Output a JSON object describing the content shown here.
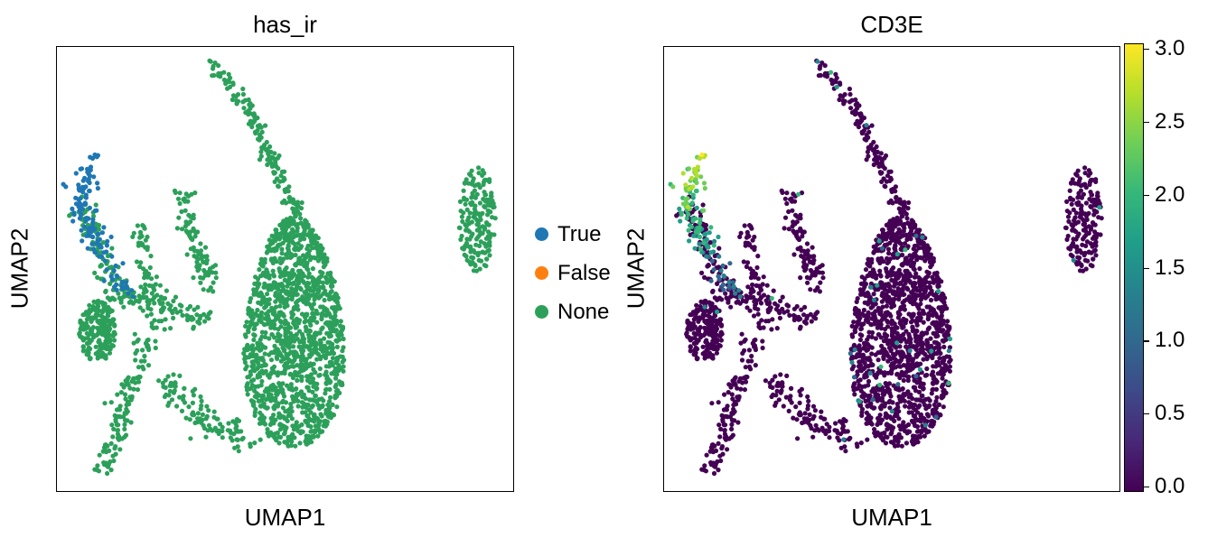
{
  "chart_data": [
    {
      "type": "scatter",
      "title": "has_ir",
      "xlabel": "UMAP1",
      "ylabel": "UMAP2",
      "legend": {
        "placement": "right",
        "entries": [
          {
            "label": "True",
            "color": "#1f77b4"
          },
          {
            "label": "False",
            "color": "#ff7f0e"
          },
          {
            "label": "None",
            "color": "#2ca05a"
          }
        ]
      },
      "grid": false,
      "ticks": false,
      "clusters": [
        {
          "name": "main-blob",
          "category": "None",
          "shape": "blob",
          "cx": 0.52,
          "cy": 0.36,
          "rx": 0.12,
          "ry": 0.26,
          "n": 1400
        },
        {
          "name": "right-island",
          "category": "None",
          "shape": "blob",
          "cx": 0.92,
          "cy": 0.61,
          "rx": 0.04,
          "ry": 0.12,
          "n": 180
        },
        {
          "name": "top-streak",
          "category": "None",
          "shape": "path",
          "pts": [
            [
              0.34,
              0.96
            ],
            [
              0.42,
              0.86
            ],
            [
              0.47,
              0.74
            ],
            [
              0.53,
              0.62
            ]
          ],
          "spread": 0.008,
          "n": 150
        },
        {
          "name": "left-lobe",
          "category": "None",
          "shape": "blob",
          "cx": 0.09,
          "cy": 0.36,
          "rx": 0.04,
          "ry": 0.07,
          "n": 200
        },
        {
          "name": "bottom-left-tail",
          "category": "None",
          "shape": "path",
          "pts": [
            [
              0.11,
              0.05
            ],
            [
              0.14,
              0.15
            ],
            [
              0.17,
              0.25
            ],
            [
              0.22,
              0.38
            ]
          ],
          "spread": 0.012,
          "n": 130
        },
        {
          "name": "mid-left-branch",
          "category": "None",
          "shape": "path",
          "pts": [
            [
              0.27,
              0.68
            ],
            [
              0.31,
              0.55
            ],
            [
              0.34,
              0.45
            ]
          ],
          "spread": 0.012,
          "n": 90
        },
        {
          "name": "left-bridge",
          "category": "None",
          "shape": "path",
          "pts": [
            [
              0.12,
              0.45
            ],
            [
              0.22,
              0.42
            ],
            [
              0.33,
              0.38
            ]
          ],
          "spread": 0.015,
          "n": 120
        },
        {
          "name": "bottom-bridge",
          "category": "None",
          "shape": "path",
          "pts": [
            [
              0.24,
              0.25
            ],
            [
              0.32,
              0.16
            ],
            [
              0.42,
              0.12
            ]
          ],
          "spread": 0.015,
          "n": 110
        },
        {
          "name": "upper-left-arm",
          "category": "None",
          "shape": "path",
          "pts": [
            [
              0.05,
              0.64
            ],
            [
              0.09,
              0.55
            ],
            [
              0.14,
              0.46
            ]
          ],
          "spread": 0.015,
          "n": 80
        },
        {
          "name": "tcell-arm",
          "category": "True",
          "shape": "path",
          "pts": [
            [
              0.08,
              0.74
            ],
            [
              0.05,
              0.66
            ],
            [
              0.09,
              0.56
            ],
            [
              0.15,
              0.45
            ]
          ],
          "spread": 0.013,
          "n": 130
        },
        {
          "name": "inner-fork",
          "category": "None",
          "shape": "path",
          "pts": [
            [
              0.19,
              0.6
            ],
            [
              0.19,
              0.5
            ],
            [
              0.22,
              0.42
            ]
          ],
          "spread": 0.01,
          "n": 50
        }
      ]
    },
    {
      "type": "scatter",
      "title": "CD3E",
      "xlabel": "UMAP1",
      "ylabel": "UMAP2",
      "colorbar": {
        "colormap": "viridis",
        "min": 0.0,
        "max": 3.0,
        "ticks": [
          "0.0",
          "0.5",
          "1.0",
          "1.5",
          "2.0",
          "2.5",
          "3.0"
        ]
      },
      "grid": false,
      "ticks": false,
      "expression": {
        "high_region": "tcell-arm",
        "high_range": [
          1.6,
          3.0
        ],
        "background": 0.0
      }
    }
  ]
}
